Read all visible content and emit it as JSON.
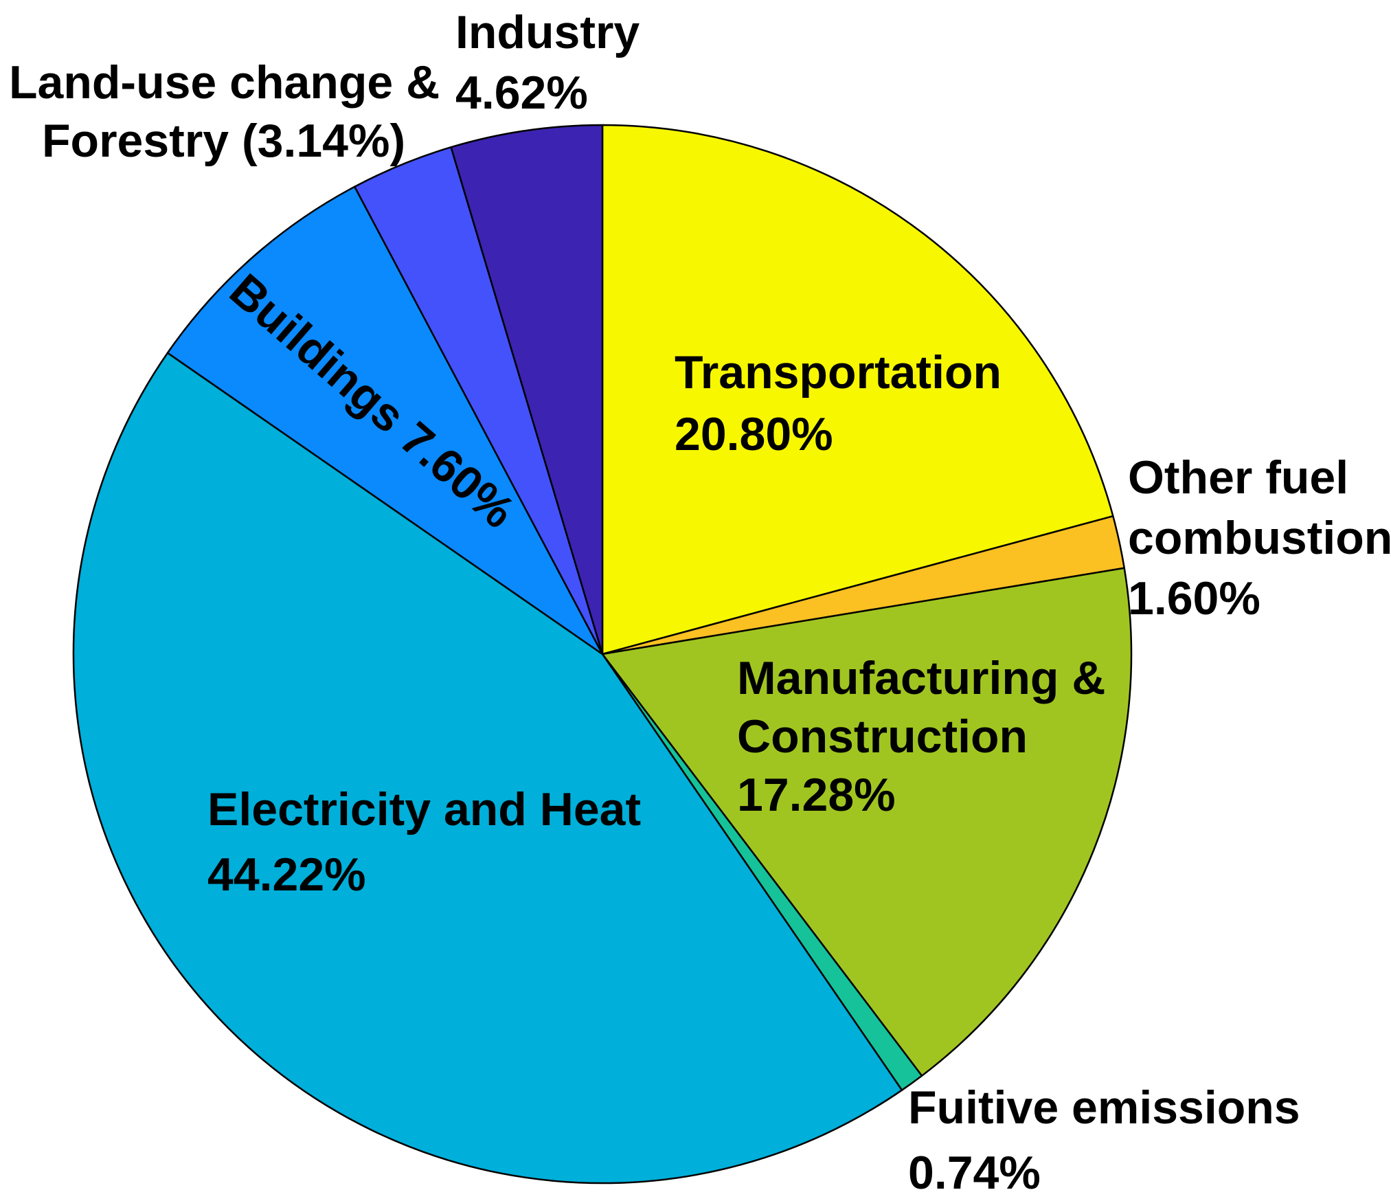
{
  "chart_data": {
    "type": "pie",
    "title": "",
    "start_angle_deg": 90,
    "direction": "clockwise",
    "slices": [
      {
        "name": "Transportation",
        "value": 20.8,
        "color": "#F7F700",
        "label_lines": [
          "Transportation",
          "20.80%"
        ]
      },
      {
        "name": "Other fuel combustion",
        "value": 1.6,
        "color": "#FBC022",
        "label_lines": [
          "Other fuel",
          "combustion",
          "1.60%"
        ]
      },
      {
        "name": "Manufacturing & Construction",
        "value": 17.28,
        "color": "#A1C520",
        "label_lines": [
          "Manufacturing &",
          "Construction",
          "17.28%"
        ]
      },
      {
        "name": "Fuitive emissions",
        "value": 0.74,
        "color": "#15C29A",
        "label_lines": [
          "Fuitive emissions",
          "0.74%"
        ]
      },
      {
        "name": "Electricity and Heat",
        "value": 44.22,
        "color": "#00AFDA",
        "label_lines": [
          "Electricity and Heat",
          "44.22%"
        ]
      },
      {
        "name": "Buildings",
        "value": 7.6,
        "color": "#0A8AFC",
        "label_lines": [
          "Buildings 7.60%"
        ]
      },
      {
        "name": "Land-use change & Forestry",
        "value": 3.14,
        "color": "#4352FB",
        "label_lines": [
          "Land-use change &",
          "Forestry (3.14%)"
        ]
      },
      {
        "name": "Industry",
        "value": 4.62,
        "color": "#3D23B1",
        "label_lines": [
          "Industry",
          "4.62%"
        ]
      }
    ]
  }
}
